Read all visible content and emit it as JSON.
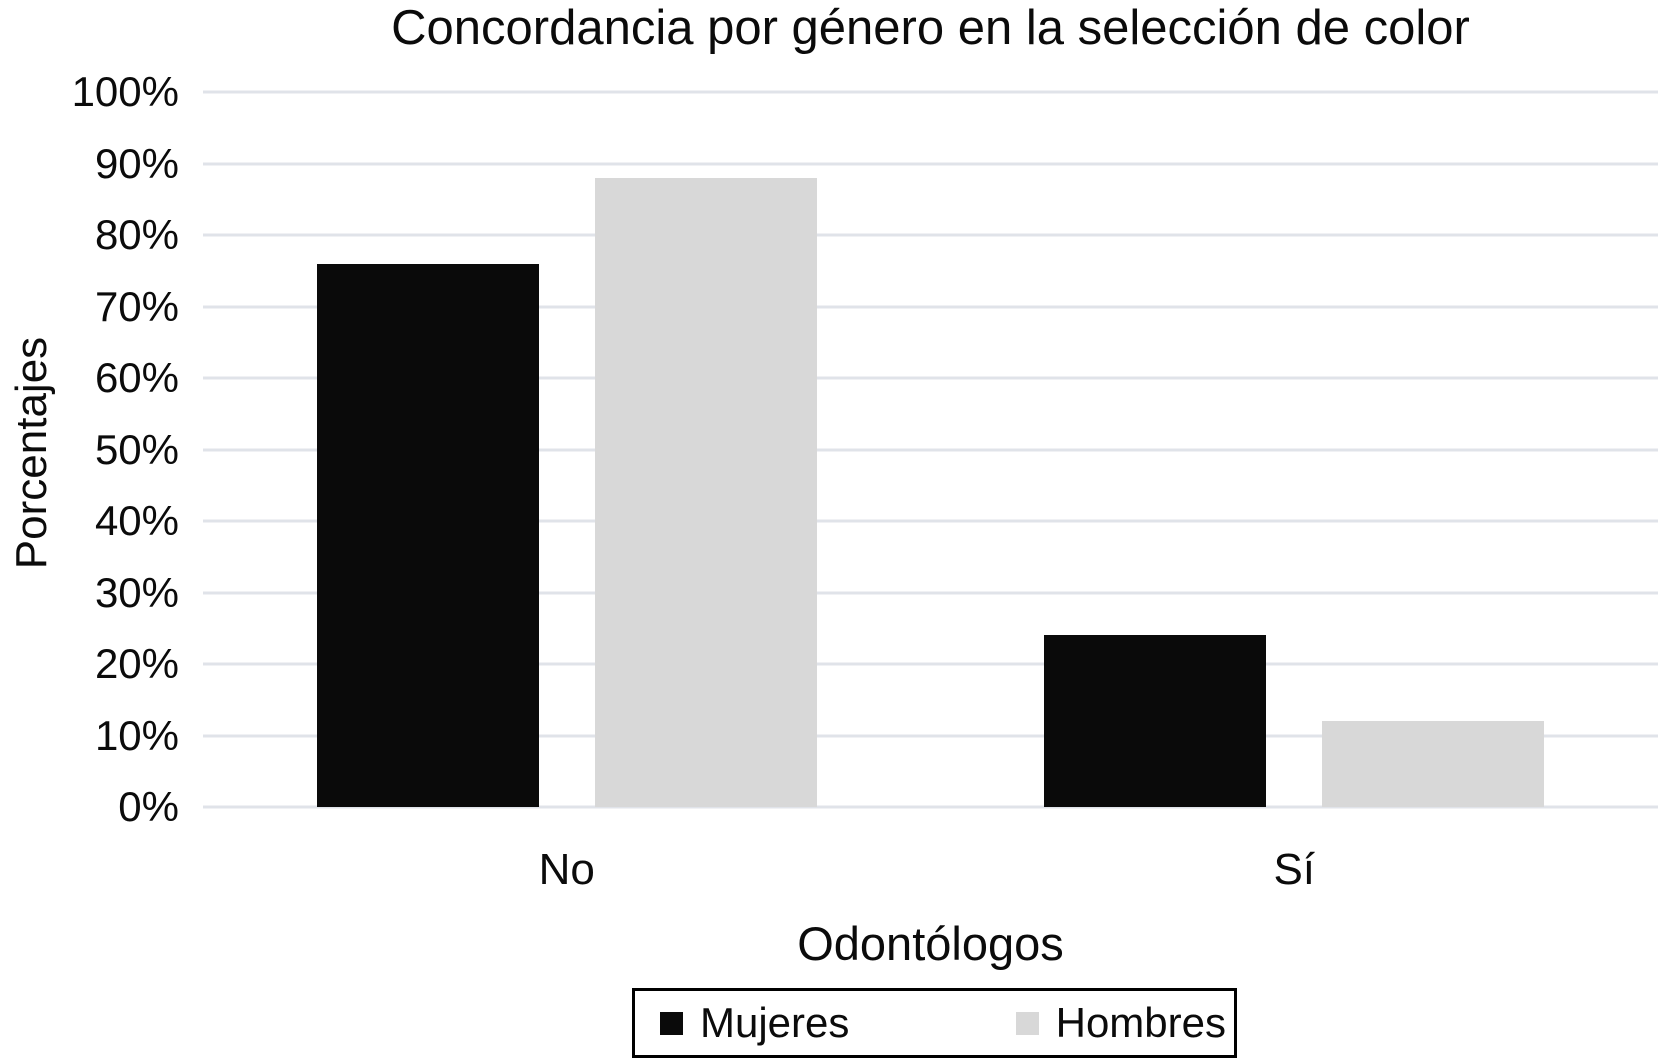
{
  "chart_data": {
    "type": "bar",
    "title": "Concordancia por género en la selección de color",
    "xlabel": "Odontólogos",
    "ylabel": "Porcentajes",
    "categories": [
      "No",
      "Sí"
    ],
    "series": [
      {
        "name": "Mujeres",
        "color": "#0a0a0a",
        "values": [
          76,
          24
        ]
      },
      {
        "name": "Hombres",
        "color": "#d8d8d8",
        "values": [
          88,
          12
        ]
      }
    ],
    "ylim": [
      0,
      100
    ],
    "ytick_step": 10,
    "ytick_labels": [
      "0%",
      "10%",
      "20%",
      "30%",
      "40%",
      "50%",
      "60%",
      "70%",
      "80%",
      "90%",
      "100%"
    ],
    "grid": true,
    "gridline_color": "#e0e3e9",
    "legend_position": "bottom"
  }
}
